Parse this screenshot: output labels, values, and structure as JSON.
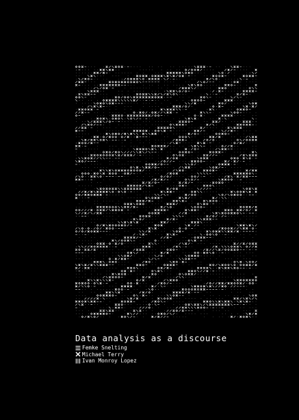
{
  "cover": {
    "title": "Data analysis as a discourse",
    "authors": [
      {
        "name": "Femke Snelting",
        "icon": "horizontal-lines-icon"
      },
      {
        "name": "Michael Terry",
        "icon": "cross-mark-icon"
      },
      {
        "name": "Ivan Monroy Lopez",
        "icon": "vertical-lines-icon"
      }
    ],
    "colors": {
      "background": "#000000",
      "foreground": "#ffffff"
    }
  }
}
